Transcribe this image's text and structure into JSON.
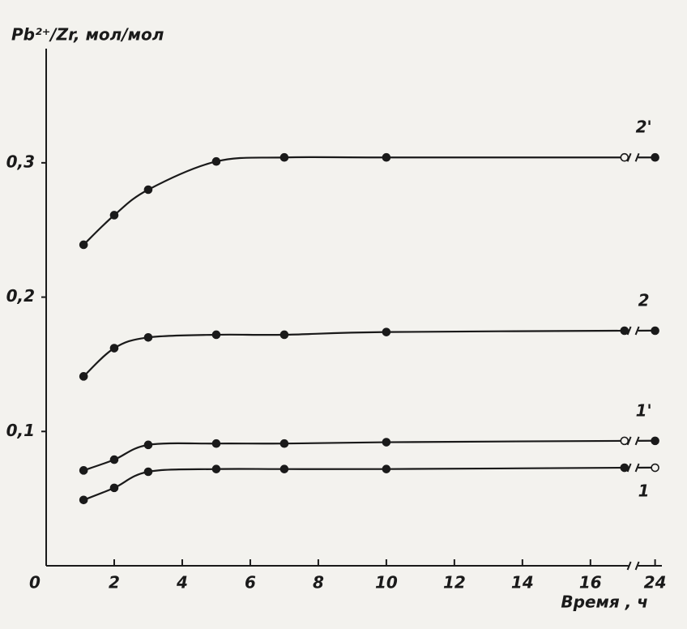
{
  "chart_data": {
    "type": "line",
    "y_label": "Pb²⁺/Zr, мол/мол",
    "x_label": "Время , ч",
    "xlim": [
      0,
      24.2
    ],
    "ylim": [
      0,
      0.385
    ],
    "axis_break": {
      "from": 17.4,
      "to": 23.5
    },
    "xticks": [
      0,
      2,
      4,
      6,
      8,
      10,
      12,
      14,
      16,
      24
    ],
    "yticks": [
      {
        "value": 0.1,
        "label": "0,1"
      },
      {
        "value": 0.2,
        "label": "0,2"
      },
      {
        "value": 0.3,
        "label": "0,3"
      }
    ],
    "x": [
      1.1,
      2,
      3,
      5,
      7,
      10,
      17,
      24
    ],
    "series": [
      {
        "name": "2'",
        "color": "#1a1a1a",
        "values": [
          0.239,
          0.261,
          0.28,
          0.301,
          0.304,
          0.304,
          0.304,
          0.304
        ],
        "hollow_points": [
          6
        ]
      },
      {
        "name": "2",
        "color": "#1a1a1a",
        "values": [
          0.141,
          0.162,
          0.17,
          0.172,
          0.172,
          0.174,
          0.175,
          0.175
        ],
        "hollow_points": []
      },
      {
        "name": "1'",
        "color": "#1a1a1a",
        "values": [
          0.071,
          0.079,
          0.09,
          0.091,
          0.091,
          0.092,
          0.093,
          0.093
        ],
        "hollow_points": [
          6
        ]
      },
      {
        "name": "1",
        "color": "#1a1a1a",
        "values": [
          0.049,
          0.058,
          0.07,
          0.072,
          0.072,
          0.072,
          0.073,
          0.073
        ],
        "hollow_points": [
          7
        ]
      }
    ]
  }
}
